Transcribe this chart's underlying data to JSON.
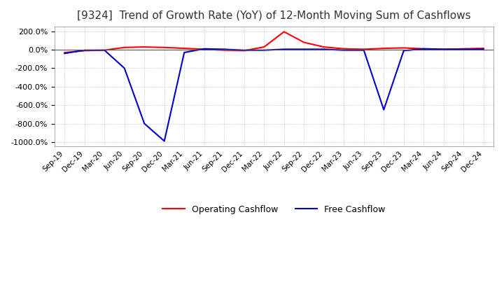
{
  "title": "[9324]  Trend of Growth Rate (YoY) of 12-Month Moving Sum of Cashflows",
  "title_fontsize": 11,
  "x_labels": [
    "Sep-19",
    "Dec-19",
    "Mar-20",
    "Jun-20",
    "Sep-20",
    "Dec-20",
    "Mar-21",
    "Jun-21",
    "Sep-21",
    "Dec-21",
    "Mar-22",
    "Jun-22",
    "Sep-22",
    "Dec-22",
    "Mar-23",
    "Jun-23",
    "Sep-23",
    "Dec-23",
    "Mar-24",
    "Jun-24",
    "Sep-24",
    "Dec-24"
  ],
  "operating_cashflow": [
    -30,
    -10,
    -5,
    25,
    30,
    25,
    15,
    5,
    -5,
    -10,
    30,
    195,
    80,
    30,
    10,
    5,
    15,
    20,
    10,
    5,
    10,
    15
  ],
  "free_cashflow": [
    -40,
    -5,
    -5,
    -200,
    -800,
    -990,
    -30,
    10,
    5,
    -5,
    -5,
    5,
    5,
    5,
    -5,
    -5,
    -650,
    -10,
    10,
    5,
    5,
    5
  ],
  "operating_color": "#ff0000",
  "free_color": "#0000cc",
  "ylim": [
    -1050,
    250
  ],
  "yticks": [
    200,
    0,
    -200,
    -400,
    -600,
    -800,
    -1000
  ],
  "background_color": "#ffffff",
  "plot_bg_color": "#ffffff",
  "grid_color": "#aaaaaa",
  "legend_labels": [
    "Operating Cashflow",
    "Free Cashflow"
  ]
}
